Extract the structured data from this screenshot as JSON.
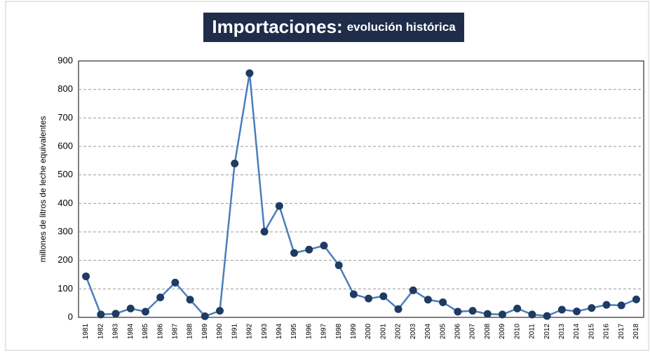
{
  "chart_data": {
    "type": "line",
    "title": "Importaciones:",
    "subtitle": "evolución histórica",
    "y_label": "millones de litros de leche equivalentes",
    "categories": [
      "1981",
      "1982",
      "1983",
      "1984",
      "1985",
      "1986",
      "1987",
      "1988",
      "1989",
      "1990",
      "1991",
      "1992",
      "1993",
      "1994",
      "1995",
      "1996",
      "1997",
      "1998",
      "1999",
      "2000",
      "2001",
      "2002",
      "2003",
      "2004",
      "2005",
      "2006",
      "2007",
      "2008",
      "2009",
      "2010",
      "2011",
      "2012",
      "2013",
      "2014",
      "2015",
      "2016",
      "2017",
      "2018"
    ],
    "series": [
      {
        "name": "Importaciones",
        "color": "#4a7ebb",
        "marker_color": "#1f3b63",
        "values": [
          144,
          10,
          13,
          31,
          20,
          70,
          122,
          62,
          4,
          23,
          540,
          857,
          301,
          391,
          226,
          238,
          252,
          183,
          81,
          66,
          74,
          29,
          95,
          62,
          53,
          20,
          23,
          12,
          10,
          31,
          10,
          5,
          27,
          21,
          33,
          44,
          42,
          63
        ]
      }
    ],
    "ylim": [
      0,
      900
    ],
    "yticks": [
      0,
      100,
      200,
      300,
      400,
      500,
      600,
      700,
      800,
      900
    ],
    "grid": true
  }
}
